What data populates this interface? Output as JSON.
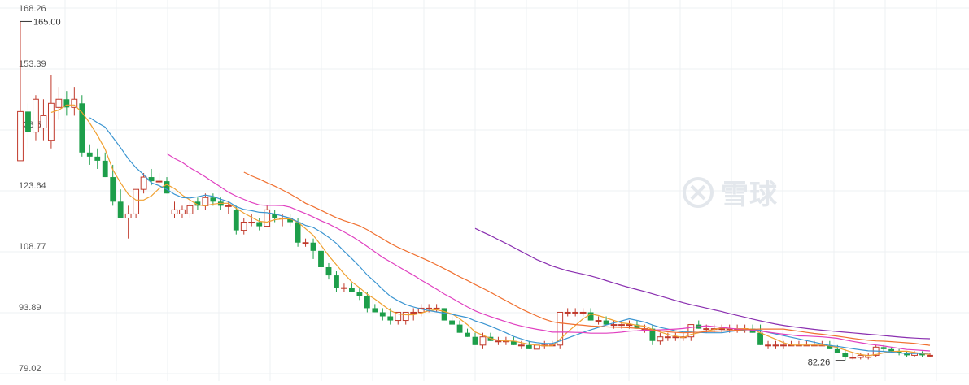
{
  "chart_data": {
    "type": "candlestick",
    "ylim": [
      79.02,
      168.26
    ],
    "y_ticks": [
      "168.26",
      "153.39",
      "138.51",
      "123.64",
      "108.77",
      "93.89",
      "79.02"
    ],
    "grid": true,
    "annotations": {
      "high": "165.00",
      "low": "82.26"
    },
    "colors": {
      "up": "#c0392b",
      "down": "#1d9e4a",
      "ma1": "#f0a030",
      "ma2": "#3b95d1",
      "ma3": "#e040c0",
      "ma4": "#f07030",
      "ma5": "#8a2fb0"
    },
    "candles": [
      {
        "o": 131,
        "h": 165,
        "l": 131,
        "c": 143
      },
      {
        "o": 143,
        "h": 145,
        "l": 134,
        "c": 138
      },
      {
        "o": 138,
        "h": 147,
        "l": 136,
        "c": 146
      },
      {
        "o": 139,
        "h": 146,
        "l": 136,
        "c": 142
      },
      {
        "o": 136,
        "h": 152,
        "l": 134,
        "c": 145
      },
      {
        "o": 144,
        "h": 149,
        "l": 141,
        "c": 146
      },
      {
        "o": 146,
        "h": 148,
        "l": 142,
        "c": 144
      },
      {
        "o": 144,
        "h": 149,
        "l": 142,
        "c": 146
      },
      {
        "o": 145,
        "h": 147,
        "l": 132,
        "c": 133
      },
      {
        "o": 133,
        "h": 135,
        "l": 130,
        "c": 132
      },
      {
        "o": 132,
        "h": 134,
        "l": 129,
        "c": 131
      },
      {
        "o": 131,
        "h": 133,
        "l": 127,
        "c": 127
      },
      {
        "o": 127,
        "h": 130,
        "l": 120,
        "c": 121
      },
      {
        "o": 121,
        "h": 124,
        "l": 117,
        "c": 117
      },
      {
        "o": 117,
        "h": 120,
        "l": 112,
        "c": 118
      },
      {
        "o": 118,
        "h": 124,
        "l": 117,
        "c": 124
      },
      {
        "o": 124,
        "h": 128,
        "l": 123,
        "c": 127
      },
      {
        "o": 127,
        "h": 129,
        "l": 125,
        "c": 126
      },
      {
        "o": 126,
        "h": 128,
        "l": 124,
        "c": 126
      },
      {
        "o": 126,
        "h": 127,
        "l": 123,
        "c": 123
      },
      {
        "o": 118,
        "h": 121,
        "l": 117,
        "c": 119
      },
      {
        "o": 118,
        "h": 120,
        "l": 117,
        "c": 119
      },
      {
        "o": 118,
        "h": 121,
        "l": 117,
        "c": 120
      },
      {
        "o": 121,
        "h": 122,
        "l": 119,
        "c": 120
      },
      {
        "o": 120,
        "h": 123,
        "l": 119,
        "c": 122
      },
      {
        "o": 122,
        "h": 123,
        "l": 120,
        "c": 121
      },
      {
        "o": 121,
        "h": 122,
        "l": 119,
        "c": 120
      },
      {
        "o": 120,
        "h": 121,
        "l": 118,
        "c": 120
      },
      {
        "o": 119,
        "h": 120,
        "l": 113,
        "c": 114
      },
      {
        "o": 114,
        "h": 117,
        "l": 113,
        "c": 116
      },
      {
        "o": 116,
        "h": 118,
        "l": 115,
        "c": 116
      },
      {
        "o": 116,
        "h": 117,
        "l": 114,
        "c": 115
      },
      {
        "o": 115,
        "h": 120,
        "l": 115,
        "c": 119
      },
      {
        "o": 118,
        "h": 119,
        "l": 116,
        "c": 117
      },
      {
        "o": 117,
        "h": 118,
        "l": 115,
        "c": 117
      },
      {
        "o": 117,
        "h": 118,
        "l": 115,
        "c": 116
      },
      {
        "o": 116,
        "h": 117,
        "l": 110,
        "c": 111
      },
      {
        "o": 111,
        "h": 112,
        "l": 110,
        "c": 111
      },
      {
        "o": 111,
        "h": 112,
        "l": 107,
        "c": 109
      },
      {
        "o": 109,
        "h": 110,
        "l": 105,
        "c": 105
      },
      {
        "o": 105,
        "h": 106,
        "l": 102,
        "c": 103
      },
      {
        "o": 103,
        "h": 104,
        "l": 99,
        "c": 100
      },
      {
        "o": 100,
        "h": 101,
        "l": 99,
        "c": 100
      },
      {
        "o": 100,
        "h": 101,
        "l": 99,
        "c": 99
      },
      {
        "o": 99,
        "h": 100,
        "l": 97,
        "c": 98
      },
      {
        "o": 98,
        "h": 99,
        "l": 94,
        "c": 95
      },
      {
        "o": 95,
        "h": 96,
        "l": 94,
        "c": 94
      },
      {
        "o": 94,
        "h": 95,
        "l": 92,
        "c": 93
      },
      {
        "o": 93,
        "h": 95,
        "l": 91,
        "c": 92
      },
      {
        "o": 92,
        "h": 94,
        "l": 91,
        "c": 94
      },
      {
        "o": 92,
        "h": 94,
        "l": 91,
        "c": 94
      },
      {
        "o": 94,
        "h": 95,
        "l": 92,
        "c": 94
      },
      {
        "o": 94,
        "h": 96,
        "l": 93,
        "c": 95
      },
      {
        "o": 95,
        "h": 96,
        "l": 94,
        "c": 95
      },
      {
        "o": 95,
        "h": 96,
        "l": 94,
        "c": 95
      },
      {
        "o": 95,
        "h": 95,
        "l": 92,
        "c": 92
      },
      {
        "o": 92,
        "h": 93,
        "l": 91,
        "c": 91
      },
      {
        "o": 91,
        "h": 92,
        "l": 89,
        "c": 89
      },
      {
        "o": 89,
        "h": 90,
        "l": 88,
        "c": 88
      },
      {
        "o": 88,
        "h": 89,
        "l": 86,
        "c": 86
      },
      {
        "o": 86,
        "h": 89,
        "l": 85,
        "c": 88
      },
      {
        "o": 88,
        "h": 89,
        "l": 87,
        "c": 87
      },
      {
        "o": 87,
        "h": 88,
        "l": 86,
        "c": 87
      },
      {
        "o": 87,
        "h": 88,
        "l": 86,
        "c": 87
      },
      {
        "o": 87,
        "h": 88,
        "l": 86,
        "c": 86
      },
      {
        "o": 86,
        "h": 87,
        "l": 85,
        "c": 86
      },
      {
        "o": 86,
        "h": 87,
        "l": 85,
        "c": 85
      },
      {
        "o": 85,
        "h": 86,
        "l": 85,
        "c": 86
      },
      {
        "o": 86,
        "h": 87,
        "l": 85,
        "c": 86
      },
      {
        "o": 86,
        "h": 87,
        "l": 86,
        "c": 86
      },
      {
        "o": 86,
        "h": 94,
        "l": 85,
        "c": 94
      },
      {
        "o": 94,
        "h": 95,
        "l": 93,
        "c": 94
      },
      {
        "o": 94,
        "h": 95,
        "l": 93,
        "c": 94
      },
      {
        "o": 94,
        "h": 95,
        "l": 93,
        "c": 94
      },
      {
        "o": 94,
        "h": 95,
        "l": 92,
        "c": 92
      },
      {
        "o": 92,
        "h": 93,
        "l": 91,
        "c": 92
      },
      {
        "o": 92,
        "h": 93,
        "l": 91,
        "c": 91
      },
      {
        "o": 91,
        "h": 92,
        "l": 90,
        "c": 91
      },
      {
        "o": 91,
        "h": 92,
        "l": 90,
        "c": 91
      },
      {
        "o": 91,
        "h": 92,
        "l": 90,
        "c": 91
      },
      {
        "o": 91,
        "h": 92,
        "l": 90,
        "c": 90
      },
      {
        "o": 90,
        "h": 91,
        "l": 89,
        "c": 90
      },
      {
        "o": 90,
        "h": 91,
        "l": 86,
        "c": 87
      },
      {
        "o": 87,
        "h": 89,
        "l": 86,
        "c": 88
      },
      {
        "o": 88,
        "h": 89,
        "l": 87,
        "c": 88
      },
      {
        "o": 88,
        "h": 89,
        "l": 87,
        "c": 88
      },
      {
        "o": 88,
        "h": 89,
        "l": 87,
        "c": 88
      },
      {
        "o": 88,
        "h": 91,
        "l": 87,
        "c": 91
      },
      {
        "o": 91,
        "h": 92,
        "l": 90,
        "c": 90
      },
      {
        "o": 90,
        "h": 91,
        "l": 89,
        "c": 90
      },
      {
        "o": 90,
        "h": 91,
        "l": 89,
        "c": 90
      },
      {
        "o": 90,
        "h": 91,
        "l": 89,
        "c": 90
      },
      {
        "o": 90,
        "h": 91,
        "l": 89,
        "c": 90
      },
      {
        "o": 90,
        "h": 91,
        "l": 89,
        "c": 90
      },
      {
        "o": 90,
        "h": 91,
        "l": 89,
        "c": 90
      },
      {
        "o": 90,
        "h": 91,
        "l": 89,
        "c": 89
      },
      {
        "o": 89,
        "h": 91,
        "l": 86,
        "c": 86
      },
      {
        "o": 86,
        "h": 87,
        "l": 85,
        "c": 86
      },
      {
        "o": 86,
        "h": 87,
        "l": 85,
        "c": 86
      },
      {
        "o": 86,
        "h": 87,
        "l": 85,
        "c": 86
      },
      {
        "o": 86,
        "h": 87,
        "l": 86,
        "c": 86
      },
      {
        "o": 86,
        "h": 87,
        "l": 86,
        "c": 86
      },
      {
        "o": 86,
        "h": 87,
        "l": 86,
        "c": 86
      },
      {
        "o": 86,
        "h": 87,
        "l": 86,
        "c": 86
      },
      {
        "o": 86,
        "h": 87,
        "l": 86,
        "c": 86
      },
      {
        "o": 86,
        "h": 87,
        "l": 85,
        "c": 85
      },
      {
        "o": 85,
        "h": 86,
        "l": 84,
        "c": 84
      },
      {
        "o": 84,
        "h": 85,
        "l": 82.26,
        "c": 83
      },
      {
        "o": 83,
        "h": 84,
        "l": 82.5,
        "c": 83
      },
      {
        "o": 83,
        "h": 84,
        "l": 82.5,
        "c": 83.5
      },
      {
        "o": 83,
        "h": 84,
        "l": 82.5,
        "c": 83.5
      },
      {
        "o": 83.5,
        "h": 86,
        "l": 83,
        "c": 85.5
      },
      {
        "o": 85.5,
        "h": 86,
        "l": 84.5,
        "c": 85
      },
      {
        "o": 85,
        "h": 85.5,
        "l": 84,
        "c": 84.5
      },
      {
        "o": 84.5,
        "h": 85,
        "l": 83.5,
        "c": 84
      },
      {
        "o": 84,
        "h": 84.5,
        "l": 83,
        "c": 83.5
      },
      {
        "o": 83.5,
        "h": 84.5,
        "l": 83,
        "c": 84
      },
      {
        "o": 84,
        "h": 84.5,
        "l": 83,
        "c": 83.5
      },
      {
        "o": 83.5,
        "h": 84,
        "l": 83,
        "c": 83.5
      }
    ]
  },
  "watermark": {
    "text": "雪球"
  }
}
